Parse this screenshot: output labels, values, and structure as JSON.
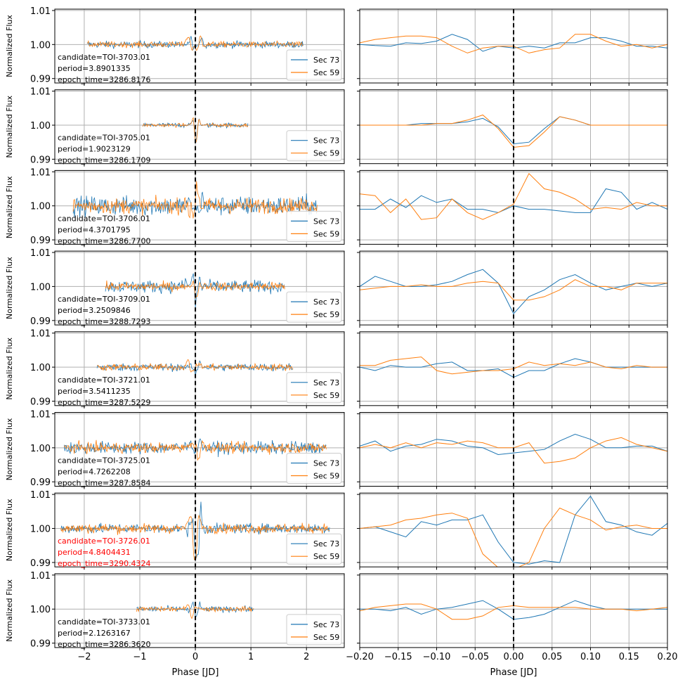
{
  "chart_data": {
    "type": "line",
    "layout": "8 rows x 2 columns",
    "xlabel": "Phase [JD]",
    "ylabel": "Normalized Flux",
    "left_xlim": [
      -2.53,
      2.68
    ],
    "left_xticks": [
      "−2",
      "−1",
      "0",
      "1",
      "2"
    ],
    "left_xtick_values": [
      -2,
      -1,
      0,
      1,
      2
    ],
    "right_xlim": [
      -0.2,
      0.2
    ],
    "right_xticks": [
      "−0.20",
      "−0.15",
      "−0.10",
      "−0.05",
      "0.00",
      "0.05",
      "0.10",
      "0.15",
      "0.20"
    ],
    "right_xtick_values": [
      -0.2,
      -0.15,
      -0.1,
      -0.05,
      0,
      0.05,
      0.1,
      0.15,
      0.2
    ],
    "ylim": [
      0.9887,
      1.0104
    ],
    "yticks": [
      "1.01",
      "1.00",
      "0.99"
    ],
    "ytick_values": [
      1.01,
      1.0,
      0.99
    ],
    "grid": true,
    "legend_placement": "lower-right",
    "series_names": [
      "Sec 73",
      "Sec 59"
    ],
    "colors": {
      "sec73": "#1f77b4",
      "sec59": "#ff7f0e",
      "highlight": "#ff0000",
      "vline": "#000000"
    },
    "zoom_phase_step": 0.02,
    "zoom_phase_start": -0.2,
    "rows": [
      {
        "label": [
          "candidate=TOI-3703.01",
          "period=3.8901335",
          "epoch_time=3286.8176"
        ],
        "highlight": false,
        "phase_half_range": 1.95,
        "noise_ppt": [
          0.7,
          0.6
        ],
        "sec73_ppt": [
          0,
          -0.3,
          -0.5,
          0.5,
          0.3,
          1,
          3,
          1.5,
          -2,
          -0.5,
          -1,
          -0.5,
          -1,
          0.5,
          0.5,
          2,
          2,
          1,
          -0.5,
          -0.5,
          -1
        ],
        "sec59_ppt": [
          0.5,
          1.5,
          2,
          2.5,
          2.5,
          2,
          -0.5,
          -2.5,
          -1,
          -0.5,
          -0.5,
          -2.5,
          -1.5,
          -1,
          3,
          3,
          1,
          -0.5,
          0,
          -1,
          0
        ]
      },
      {
        "label": [
          "candidate=TOI-3705.01",
          "period=1.9023129",
          "epoch_time=3286.1709"
        ],
        "highlight": false,
        "phase_half_range": 0.95,
        "noise_ppt": [
          0.5,
          0.4
        ],
        "sec73_ppt": [
          0,
          0,
          0,
          0,
          0.5,
          0.5,
          0.5,
          1,
          2,
          -0.5,
          -5.5,
          -5,
          -1,
          2.5,
          1.5,
          0,
          0,
          0,
          0,
          0,
          0
        ],
        "sec59_ppt": [
          0,
          0,
          0,
          0,
          0,
          0.5,
          0.5,
          1.5,
          3,
          -1,
          -6.5,
          -6,
          -2,
          2.5,
          1.5,
          0,
          0,
          0,
          0,
          0,
          0
        ]
      },
      {
        "label": [
          "candidate=TOI-3706.01",
          "period=4.3701795",
          "epoch_time=3286.7700"
        ],
        "highlight": false,
        "phase_half_range": 2.2,
        "noise_ppt": [
          2.0,
          1.6
        ],
        "sec73_ppt": [
          -1,
          -1,
          2,
          -0.5,
          3,
          1,
          2,
          -1,
          -1,
          -2,
          0,
          -1,
          -1,
          -1.5,
          -2,
          -2,
          5,
          4,
          -1,
          1,
          -1
        ],
        "sec59_ppt": [
          3.5,
          3,
          -2,
          2,
          -4,
          -3.5,
          2,
          -2,
          -4,
          -2,
          0.5,
          9.5,
          5,
          4,
          2,
          -1,
          -0.5,
          -1,
          1,
          0,
          0
        ]
      },
      {
        "label": [
          "candidate=TOI-3709.01",
          "period=3.2509846",
          "epoch_time=3288.7293"
        ],
        "highlight": false,
        "phase_half_range": 1.62,
        "noise_ppt": [
          1.3,
          0.9
        ],
        "sec73_ppt": [
          0,
          3,
          1.5,
          0,
          0,
          0.5,
          1.5,
          3.5,
          5,
          1,
          -8,
          -3,
          -1,
          2,
          3.5,
          1,
          -1,
          0,
          1,
          0,
          1
        ],
        "sec59_ppt": [
          -1,
          -0.5,
          0,
          0,
          0.5,
          0,
          0,
          1,
          1.5,
          1,
          -4,
          -4,
          -3,
          -1,
          2,
          0,
          0,
          -1,
          1,
          1,
          1
        ]
      },
      {
        "label": [
          "candidate=TOI-3721.01",
          "period=3.5411235",
          "epoch_time=3287.5229"
        ],
        "highlight": false,
        "phase_half_range": 1.77,
        "noise_ppt": [
          0.8,
          0.7
        ],
        "sec73_ppt": [
          0,
          -1,
          0.5,
          0,
          0,
          1,
          1.5,
          -1,
          -1,
          -0.5,
          -3,
          -1,
          -1,
          1,
          2.5,
          1.5,
          0,
          0,
          0,
          0,
          0
        ],
        "sec59_ppt": [
          0.5,
          0.5,
          2,
          2.5,
          3,
          -1,
          -2,
          -1.5,
          -1,
          -1,
          -0.5,
          1.5,
          0.5,
          1,
          0.5,
          1.5,
          0,
          -0.5,
          0.5,
          0,
          0
        ]
      },
      {
        "label": [
          "candidate=TOI-3725.01",
          "period=4.7262208",
          "epoch_time=3287.8584"
        ],
        "highlight": false,
        "phase_half_range": 2.36,
        "noise_ppt": [
          1.3,
          1.1
        ],
        "sec73_ppt": [
          0.5,
          2,
          -1,
          0.5,
          1,
          2.5,
          2,
          0.5,
          0,
          -2,
          -1.5,
          -1,
          -0.5,
          2,
          4,
          2.5,
          0,
          0,
          0.5,
          0.5,
          -1
        ],
        "sec59_ppt": [
          0,
          1,
          0,
          1.5,
          0,
          1.5,
          1,
          2,
          1.5,
          0,
          0,
          1.5,
          -4.5,
          -4,
          -3,
          0,
          2,
          3,
          1,
          0,
          -1
        ]
      },
      {
        "label": [
          "candidate=TOI-3726.01",
          "period=4.8404431",
          "epoch_time=3290.4324"
        ],
        "highlight": true,
        "phase_half_range": 2.42,
        "noise_ppt": [
          1.0,
          1.0
        ],
        "sec73_ppt": [
          0,
          0.5,
          -1,
          -2.5,
          2,
          1,
          2.5,
          2.5,
          4,
          -4,
          -10,
          -10.5,
          -9.5,
          -10,
          4,
          9.5,
          2,
          1,
          -1,
          -2,
          1.5
        ],
        "sec59_ppt": [
          0,
          0.5,
          1,
          2.5,
          3,
          4,
          4.5,
          3,
          -7.5,
          -11.5,
          -12,
          -10,
          0,
          6,
          4,
          2.5,
          -0.5,
          0.5,
          1,
          0,
          0
        ]
      },
      {
        "label": [
          "candidate=TOI-3733.01",
          "period=2.1263167",
          "epoch_time=3286.3620"
        ],
        "highlight": false,
        "phase_half_range": 1.06,
        "noise_ppt": [
          0.6,
          0.5
        ],
        "sec73_ppt": [
          0,
          0,
          -0.5,
          0.5,
          -1.5,
          0,
          0.5,
          1.5,
          2.5,
          0,
          -3,
          -2.5,
          -1.5,
          0.5,
          2.5,
          1,
          0,
          0,
          0,
          0,
          0
        ],
        "sec59_ppt": [
          -0.5,
          0.5,
          1,
          1.5,
          1.5,
          0,
          -3,
          -3,
          -2,
          0.5,
          1,
          0.5,
          0.5,
          0.5,
          0.5,
          0,
          0,
          0,
          -0.5,
          0,
          0.5
        ]
      }
    ]
  }
}
